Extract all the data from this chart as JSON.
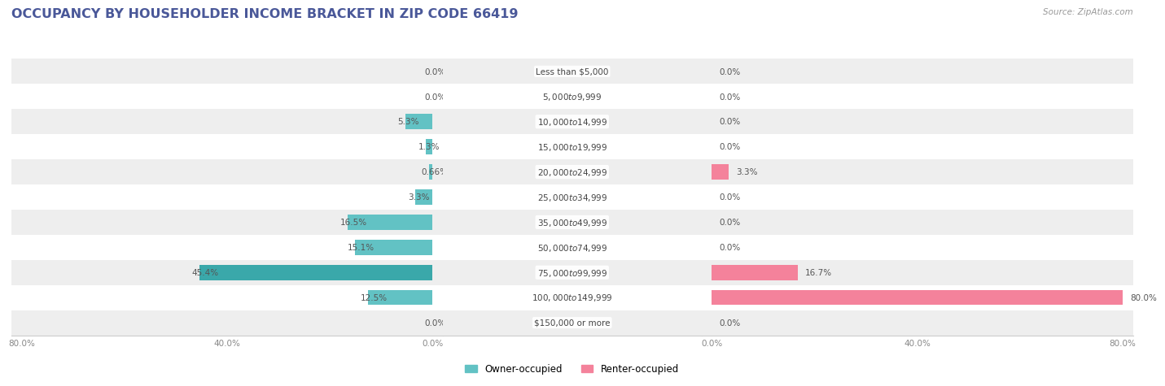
{
  "title": "OCCUPANCY BY HOUSEHOLDER INCOME BRACKET IN ZIP CODE 66419",
  "source": "Source: ZipAtlas.com",
  "categories": [
    "Less than $5,000",
    "$5,000 to $9,999",
    "$10,000 to $14,999",
    "$15,000 to $19,999",
    "$20,000 to $24,999",
    "$25,000 to $34,999",
    "$35,000 to $49,999",
    "$50,000 to $74,999",
    "$75,000 to $99,999",
    "$100,000 to $149,999",
    "$150,000 or more"
  ],
  "owner_values": [
    0.0,
    0.0,
    5.3,
    1.3,
    0.66,
    3.3,
    16.5,
    15.1,
    45.4,
    12.5,
    0.0
  ],
  "renter_values": [
    0.0,
    0.0,
    0.0,
    0.0,
    3.3,
    0.0,
    0.0,
    0.0,
    16.7,
    80.0,
    0.0
  ],
  "owner_color": "#62C2C4",
  "renter_color": "#F4829B",
  "owner_color_dark": "#3AA8AA",
  "bg_color": "#FFFFFF",
  "row_bg_even": "#EEEEEE",
  "row_bg_odd": "#FFFFFF",
  "bar_height": 0.6,
  "max_value": 80.0,
  "title_color": "#4A5899",
  "title_fontsize": 11.5,
  "label_fontsize": 7.5,
  "category_fontsize": 7.5,
  "legend_fontsize": 8.5,
  "source_fontsize": 7.5,
  "axis_label_fontsize": 7.5,
  "owner_labels": [
    "0.0%",
    "0.0%",
    "5.3%",
    "1.3%",
    "0.66%",
    "3.3%",
    "16.5%",
    "15.1%",
    "45.4%",
    "12.5%",
    "0.0%"
  ],
  "renter_labels": [
    "0.0%",
    "0.0%",
    "0.0%",
    "0.0%",
    "3.3%",
    "0.0%",
    "0.0%",
    "0.0%",
    "16.7%",
    "80.0%",
    "0.0%"
  ]
}
